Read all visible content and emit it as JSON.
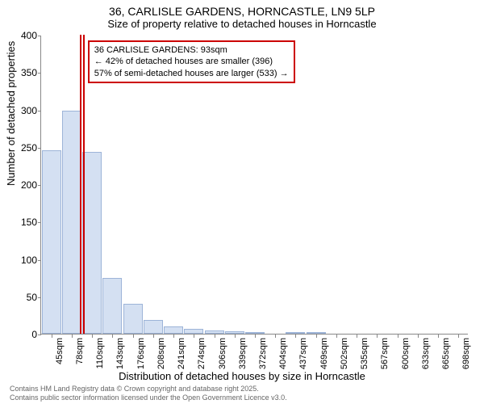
{
  "title_main": "36, CARLISLE GARDENS, HORNCASTLE, LN9 5LP",
  "title_sub": "Size of property relative to detached houses in Horncastle",
  "chart": {
    "type": "histogram",
    "ylabel": "Number of detached properties",
    "xlabel": "Distribution of detached houses by size in Horncastle",
    "ylim": [
      0,
      400
    ],
    "ytick_step": 50,
    "yticks": [
      0,
      50,
      100,
      150,
      200,
      250,
      300,
      350,
      400
    ],
    "x_categories": [
      "45sqm",
      "78sqm",
      "110sqm",
      "143sqm",
      "176sqm",
      "208sqm",
      "241sqm",
      "274sqm",
      "306sqm",
      "339sqm",
      "372sqm",
      "404sqm",
      "437sqm",
      "469sqm",
      "502sqm",
      "535sqm",
      "567sqm",
      "600sqm",
      "633sqm",
      "665sqm",
      "698sqm"
    ],
    "values": [
      245,
      298,
      243,
      75,
      40,
      18,
      10,
      6,
      4,
      3,
      2,
      0,
      2,
      1,
      0,
      0,
      0,
      0,
      0,
      0,
      0
    ],
    "bar_fill": "#d4e0f2",
    "bar_border": "#9db4d8",
    "bar_width": 0.95,
    "background_color": "#ffffff",
    "axis_color": "#888888",
    "label_fontsize": 13,
    "tick_fontsize": 12,
    "title_fontsize": 14
  },
  "marker": {
    "position_sqm": 93,
    "color": "#cc0000",
    "line_width": 2,
    "callout_lines": [
      "36 CARLISLE GARDENS: 93sqm",
      "← 42% of detached houses are smaller (396)",
      "57% of semi-detached houses are larger (533) →"
    ]
  },
  "footer_lines": [
    "Contains HM Land Registry data © Crown copyright and database right 2025.",
    "Contains public sector information licensed under the Open Government Licence v3.0."
  ]
}
